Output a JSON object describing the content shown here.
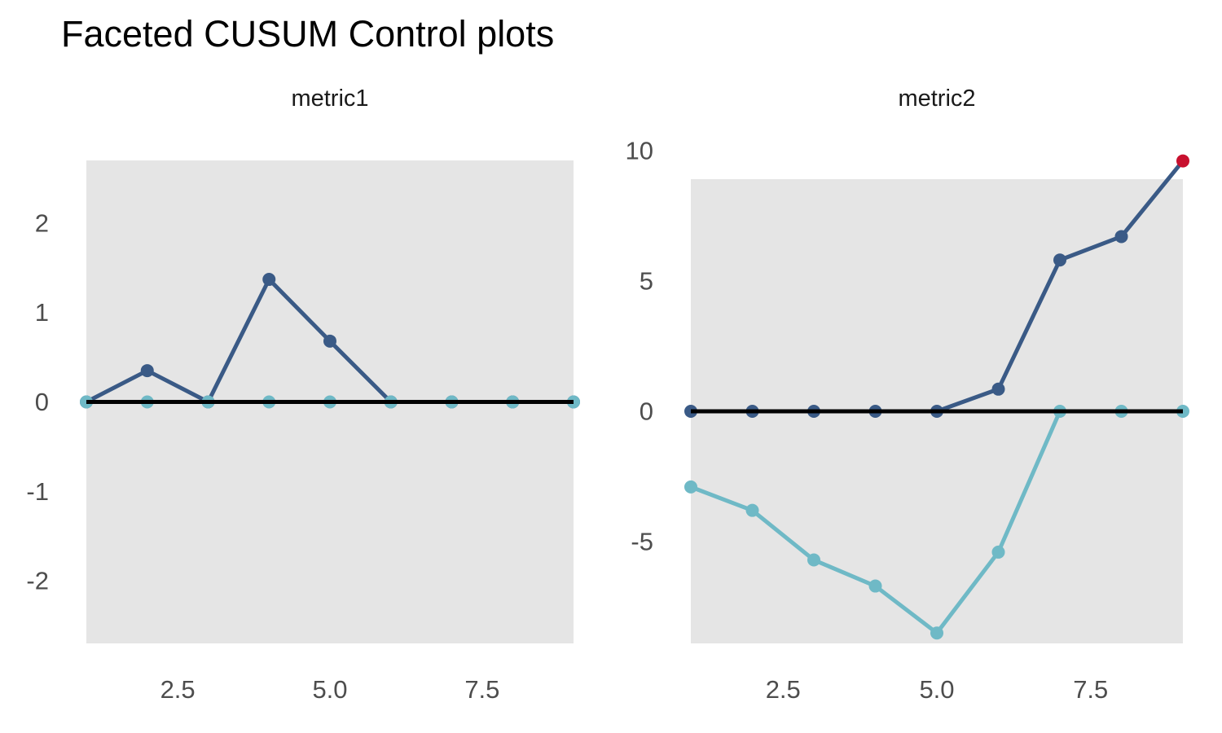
{
  "title": "Faceted CUSUM Control plots",
  "colors": {
    "cusum_upper": "#3A5A86",
    "cusum_lower": "#6FB9C6",
    "violation": "#C8102E",
    "panel_background": "#E5E5E5",
    "center_line": "#000000",
    "tick_label": "#4D4D4D",
    "facet_title": "#1A1A1A"
  },
  "chart_data": [
    {
      "type": "line",
      "facet_title": "metric1",
      "x": [
        1,
        2,
        3,
        4,
        5,
        6,
        7,
        8,
        9
      ],
      "series": [
        {
          "name": "cusum_upper",
          "color_key": "cusum_upper",
          "values": [
            0,
            0.35,
            0,
            1.37,
            0.68,
            0,
            0,
            0,
            0
          ]
        },
        {
          "name": "cusum_lower",
          "color_key": "cusum_lower",
          "values": [
            0,
            0,
            0,
            0,
            0,
            0,
            0,
            0,
            0
          ]
        }
      ],
      "center_line_value": 0,
      "violations": [],
      "x_ticks": [
        {
          "value": 2.5,
          "label": "2.5"
        },
        {
          "value": 5,
          "label": "5.0"
        },
        {
          "value": 7.5,
          "label": "7.5"
        }
      ],
      "y_ticks": [
        {
          "value": 2,
          "label": "2"
        },
        {
          "value": 1,
          "label": "1"
        },
        {
          "value": 0,
          "label": "0"
        },
        {
          "value": -1,
          "label": "-1"
        },
        {
          "value": -2,
          "label": "-2"
        }
      ],
      "xlim": [
        1,
        9
      ],
      "ylim": [
        -2.7,
        2.7
      ],
      "grid": false,
      "legend": "none",
      "xlabel": "",
      "ylabel": ""
    },
    {
      "type": "line",
      "facet_title": "metric2",
      "x": [
        1,
        2,
        3,
        4,
        5,
        6,
        7,
        8,
        9
      ],
      "series": [
        {
          "name": "cusum_upper",
          "color_key": "cusum_upper",
          "values": [
            0,
            0,
            0,
            0,
            0,
            0.85,
            5.8,
            6.7,
            9.6
          ]
        },
        {
          "name": "cusum_lower",
          "color_key": "cusum_lower",
          "values": [
            -2.9,
            -3.8,
            -5.7,
            -6.7,
            -8.5,
            -5.4,
            0,
            0,
            0
          ]
        }
      ],
      "center_line_value": 0,
      "violations": [
        {
          "series": "cusum_upper",
          "index": 8
        }
      ],
      "x_ticks": [
        {
          "value": 2.5,
          "label": "2.5"
        },
        {
          "value": 5,
          "label": "5.0"
        },
        {
          "value": 7.5,
          "label": "7.5"
        }
      ],
      "y_ticks": [
        {
          "value": 10,
          "label": "10"
        },
        {
          "value": 5,
          "label": "5"
        },
        {
          "value": 0,
          "label": "0"
        },
        {
          "value": -5,
          "label": "-5"
        }
      ],
      "xlim": [
        1,
        9
      ],
      "ylim": [
        -8.9,
        8.9
      ],
      "grid": false,
      "legend": "none",
      "xlabel": "",
      "ylabel": ""
    }
  ]
}
